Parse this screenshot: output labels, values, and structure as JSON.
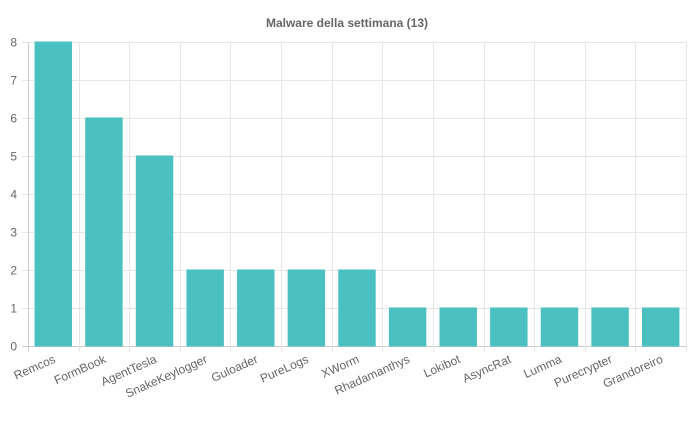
{
  "chart_data": {
    "type": "bar",
    "title": "Malware della settimana (13)",
    "xlabel": "",
    "ylabel": "",
    "categories": [
      "Remcos",
      "FormBook",
      "AgentTesla",
      "SnakeKeylogger",
      "Guloader",
      "PureLogs",
      "XWorm",
      "Rhadamanthys",
      "Lokibot",
      "AsyncRat",
      "Lumma",
      "Purecrypter",
      "Grandoreiro"
    ],
    "values": [
      8,
      6,
      5,
      2,
      2,
      2,
      2,
      1,
      1,
      1,
      1,
      1,
      1
    ],
    "ylim": [
      0,
      8
    ],
    "yticks": [
      "0",
      "1",
      "2",
      "3",
      "4",
      "5",
      "6",
      "7",
      "8"
    ],
    "grid": true,
    "legend": "none",
    "bar_color": "#4bc0c0",
    "bar_border_color": "#4bc0c0"
  }
}
